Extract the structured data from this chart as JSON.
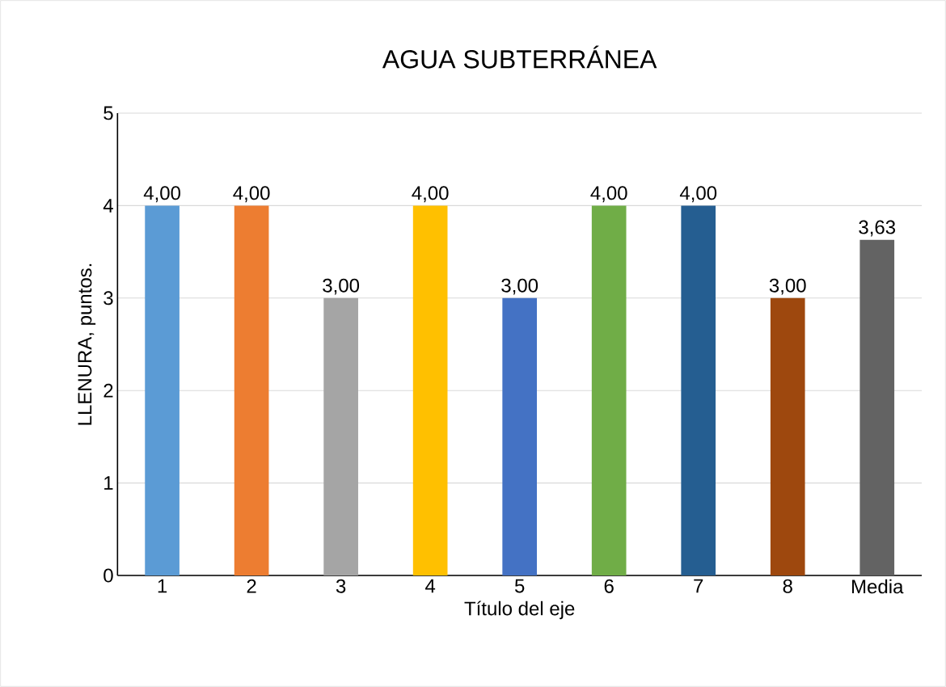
{
  "chart_data": {
    "type": "bar",
    "title": "AGUA SUBTERRÁNEA",
    "xlabel": "Título del eje",
    "ylabel": "LLENURA, puntos.",
    "categories": [
      "1",
      "2",
      "3",
      "4",
      "5",
      "6",
      "7",
      "8",
      "Media"
    ],
    "values": [
      4,
      4,
      3,
      4,
      3,
      4,
      4,
      3,
      3.63
    ],
    "value_labels": [
      "4,00",
      "4,00",
      "3,00",
      "4,00",
      "3,00",
      "4,00",
      "4,00",
      "3,00",
      "3,63"
    ],
    "colors": [
      "#5b9bd5",
      "#ed7d31",
      "#a5a5a5",
      "#ffc000",
      "#4472c4",
      "#70ad47",
      "#255e91",
      "#9e480e",
      "#636363"
    ],
    "ylim": [
      0,
      5
    ],
    "yticks": [
      0,
      1,
      2,
      3,
      4,
      5
    ],
    "grid": "y"
  }
}
